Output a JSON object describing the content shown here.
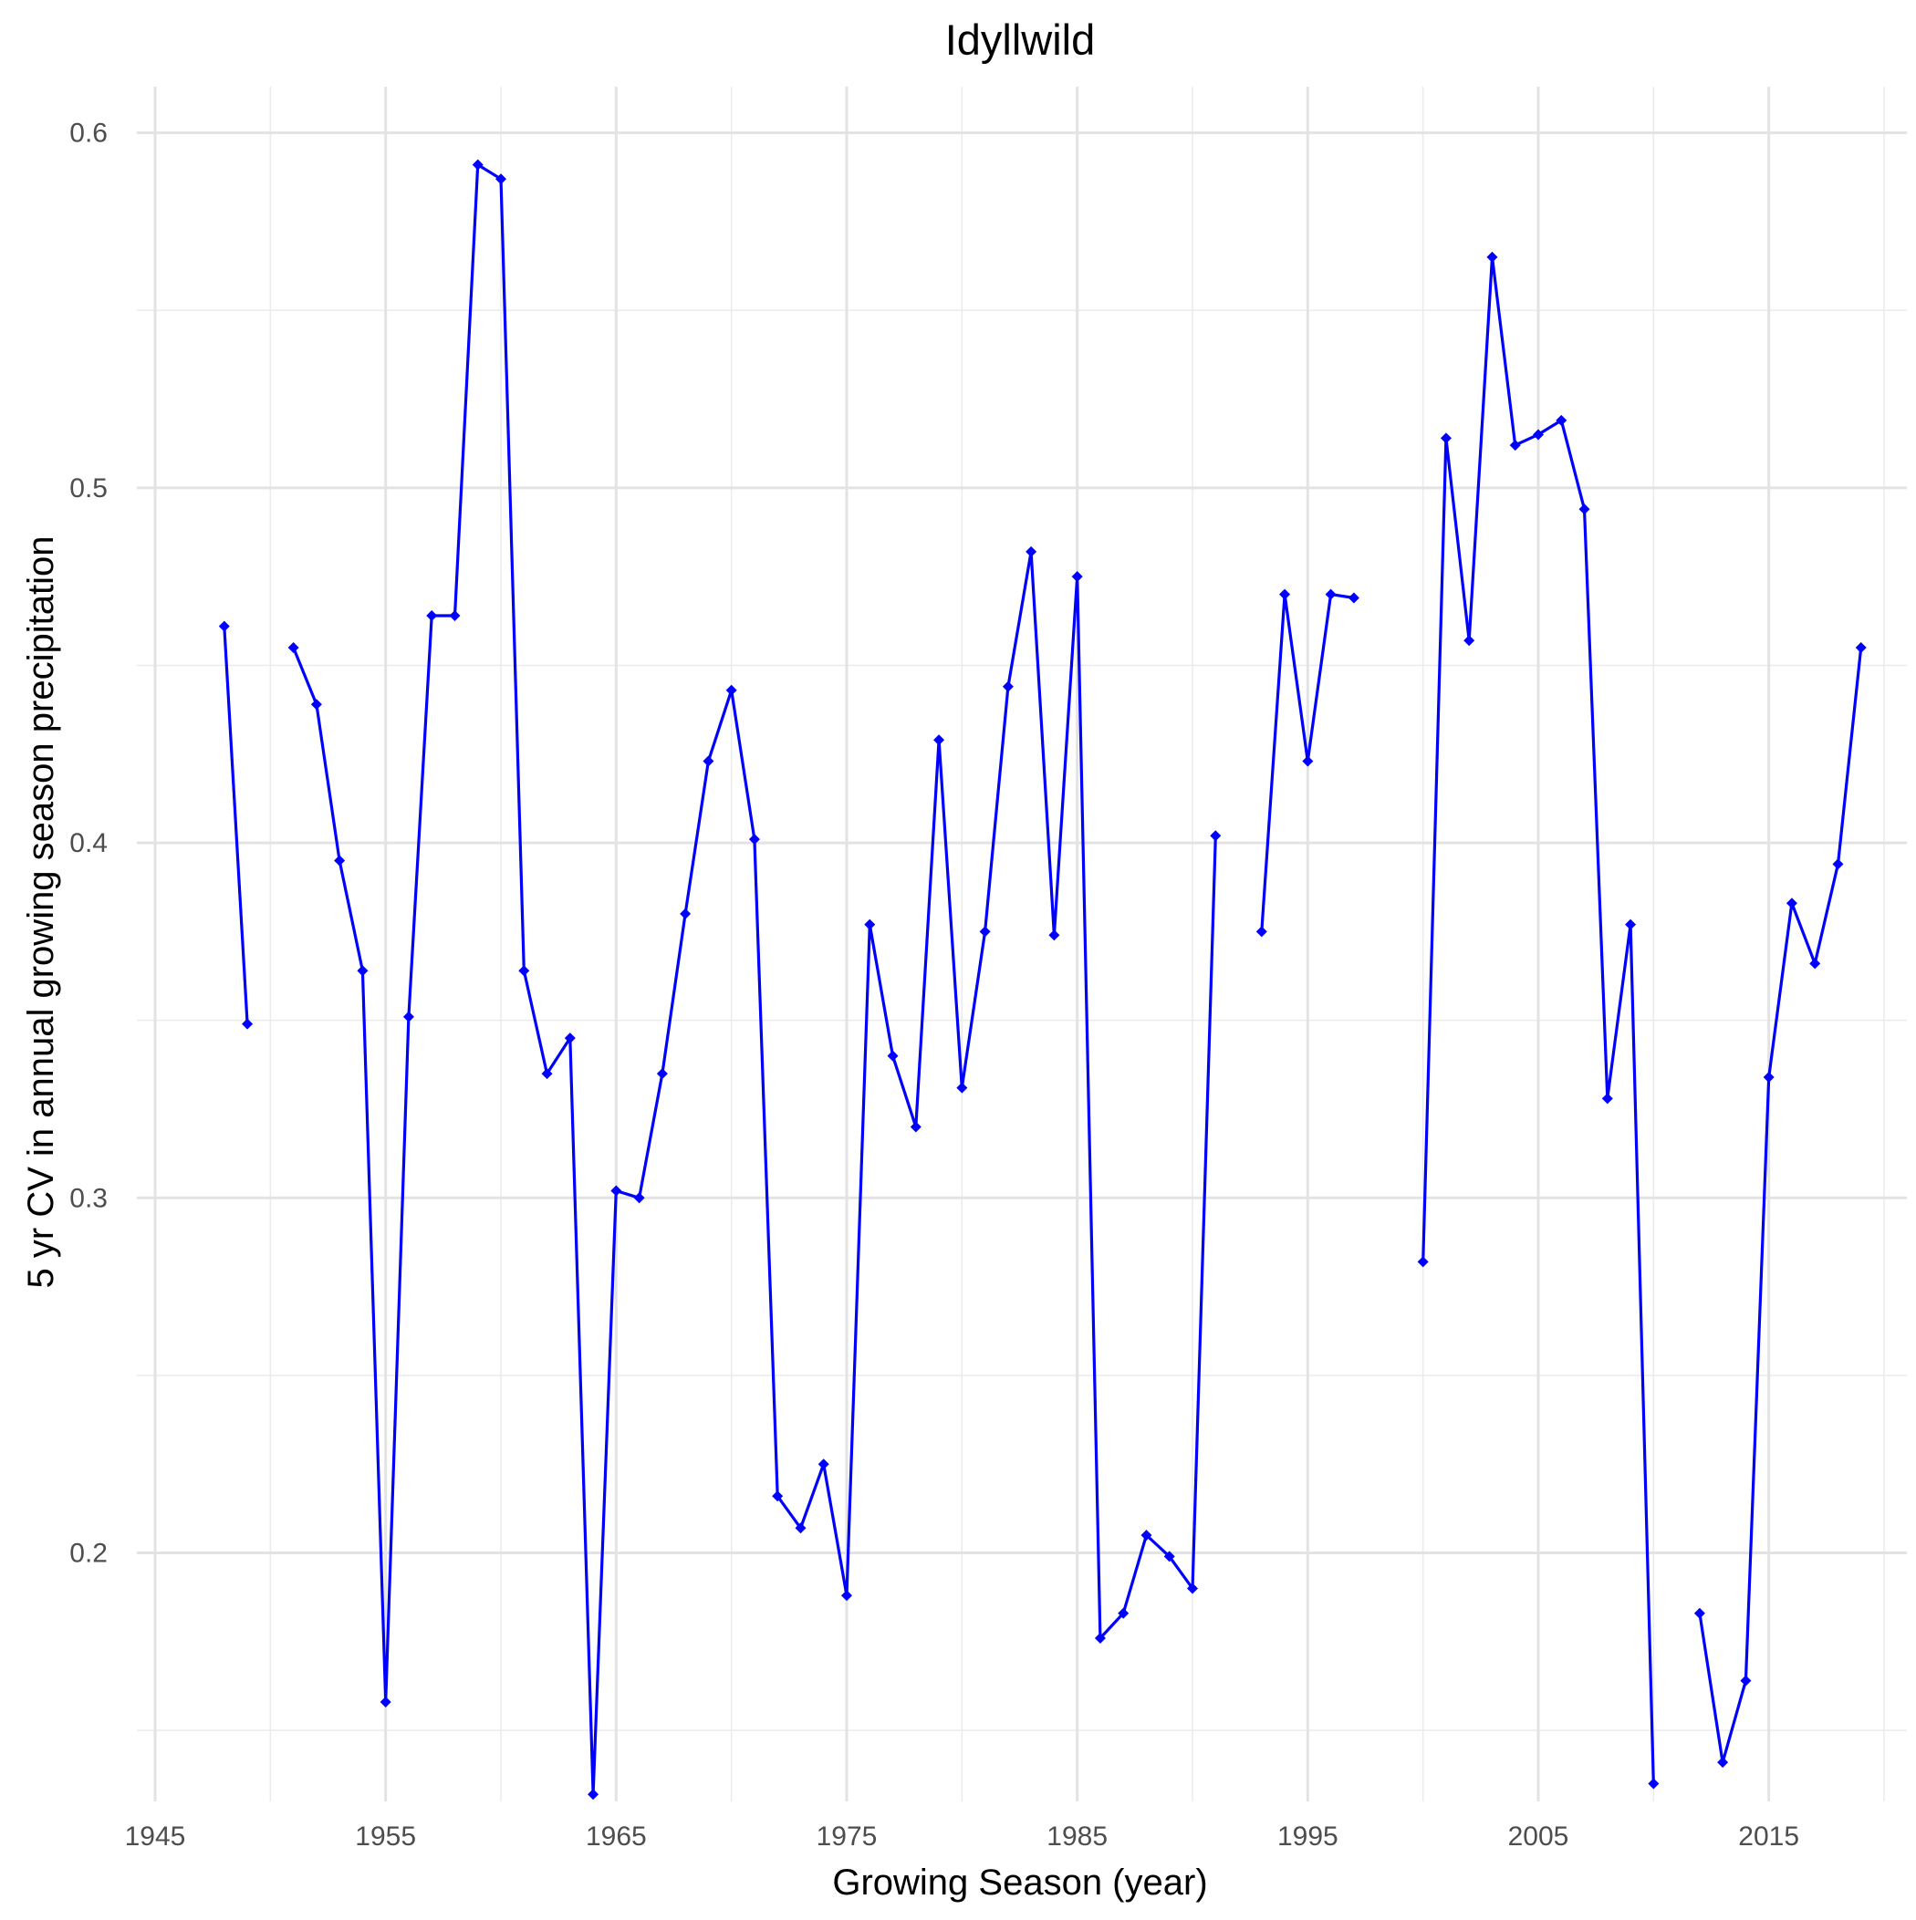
{
  "chart_data": {
    "type": "line",
    "title": "Idyllwild",
    "xlabel": "Growing Season (year)",
    "ylabel": "5 yr CV in annual growing season precipitation",
    "xlim": [
      1945,
      2020
    ],
    "ylim": [
      0.13,
      0.613
    ],
    "x_ticks": [
      1945,
      1955,
      1965,
      1975,
      1985,
      1995,
      2005,
      2015
    ],
    "x_tick_labels": [
      "1945",
      "1955",
      "1965",
      "1975",
      "1985",
      "1995",
      "2005",
      "2015"
    ],
    "x_minor_ticks": [
      1950,
      1960,
      1970,
      1980,
      1990,
      2000,
      2010,
      2020
    ],
    "y_ticks": [
      0.2,
      0.3,
      0.4,
      0.5,
      0.6
    ],
    "y_tick_labels": [
      "0.2",
      "0.3",
      "0.4",
      "0.5",
      "0.6"
    ],
    "y_minor_ticks": [
      0.15,
      0.25,
      0.35,
      0.45,
      0.55
    ],
    "grid": true,
    "marker": "diamond",
    "series": [
      {
        "color": "#0000ff",
        "segments": [
          [
            [
              1948,
              0.461
            ],
            [
              1949,
              0.349
            ]
          ],
          [
            [
              1951,
              0.455
            ],
            [
              1952,
              0.439
            ],
            [
              1953,
              0.395
            ],
            [
              1954,
              0.364
            ],
            [
              1955,
              0.158
            ],
            [
              1956,
              0.351
            ],
            [
              1957,
              0.464
            ],
            [
              1958,
              0.464
            ],
            [
              1959,
              0.591
            ],
            [
              1960,
              0.587
            ],
            [
              1961,
              0.364
            ],
            [
              1962,
              0.335
            ],
            [
              1963,
              0.345
            ],
            [
              1964,
              0.132
            ],
            [
              1965,
              0.302
            ],
            [
              1966,
              0.3
            ],
            [
              1967,
              0.335
            ],
            [
              1968,
              0.38
            ],
            [
              1969,
              0.423
            ],
            [
              1970,
              0.443
            ],
            [
              1971,
              0.401
            ],
            [
              1972,
              0.216
            ],
            [
              1973,
              0.207
            ],
            [
              1974,
              0.225
            ],
            [
              1975,
              0.188
            ],
            [
              1976,
              0.377
            ],
            [
              1977,
              0.34
            ],
            [
              1978,
              0.32
            ],
            [
              1979,
              0.429
            ],
            [
              1980,
              0.331
            ],
            [
              1981,
              0.375
            ],
            [
              1982,
              0.444
            ],
            [
              1983,
              0.482
            ],
            [
              1984,
              0.374
            ],
            [
              1985,
              0.475
            ],
            [
              1986,
              0.176
            ],
            [
              1987,
              0.183
            ],
            [
              1988,
              0.205
            ],
            [
              1989,
              0.199
            ],
            [
              1990,
              0.19
            ],
            [
              1991,
              0.402
            ]
          ],
          [
            [
              1993,
              0.375
            ],
            [
              1994,
              0.47
            ],
            [
              1995,
              0.423
            ],
            [
              1996,
              0.47
            ],
            [
              1997,
              0.469
            ]
          ],
          [
            [
              2000,
              0.282
            ],
            [
              2001,
              0.514
            ],
            [
              2002,
              0.457
            ],
            [
              2003,
              0.565
            ],
            [
              2004,
              0.512
            ],
            [
              2005,
              0.515
            ],
            [
              2006,
              0.519
            ],
            [
              2007,
              0.494
            ],
            [
              2008,
              0.328
            ],
            [
              2009,
              0.377
            ],
            [
              2010,
              0.135
            ]
          ],
          [
            [
              2012,
              0.183
            ],
            [
              2013,
              0.141
            ],
            [
              2014,
              0.164
            ],
            [
              2015,
              0.334
            ],
            [
              2016,
              0.383
            ],
            [
              2017,
              0.366
            ],
            [
              2018,
              0.394
            ],
            [
              2019,
              0.455
            ]
          ]
        ]
      }
    ]
  }
}
